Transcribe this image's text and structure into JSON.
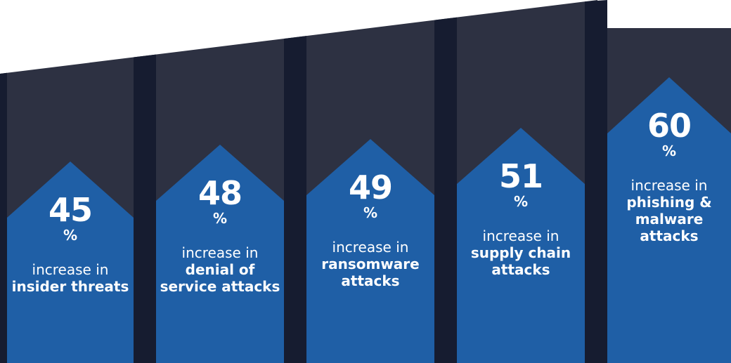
{
  "colors": {
    "background": "#ffffff",
    "column_dark": "#2d3142",
    "gap_dark": "#161c30",
    "accent_blue": "#1f5fa6"
  },
  "chart_data": {
    "type": "bar",
    "title": "",
    "categories": [
      "insider threats",
      "denial of service attacks",
      "ransomware attacks",
      "supply chain attacks",
      "phishing & malware attacks"
    ],
    "values": [
      45,
      48,
      49,
      51,
      60
    ],
    "unit": "%",
    "labels": [
      {
        "value": "45",
        "unit": "%",
        "prefix": "increase in",
        "emphasis": "insider threats"
      },
      {
        "value": "48",
        "unit": "%",
        "prefix": "increase in",
        "emphasis": "denial of service attacks"
      },
      {
        "value": "49",
        "unit": "%",
        "prefix": "increase in",
        "emphasis": "ransomware attacks"
      },
      {
        "value": "51",
        "unit": "%",
        "prefix": "increase in",
        "emphasis": "supply chain attacks"
      },
      {
        "value": "60",
        "unit": "%",
        "prefix": "increase in",
        "emphasis": "phishing & malware attacks"
      }
    ]
  }
}
